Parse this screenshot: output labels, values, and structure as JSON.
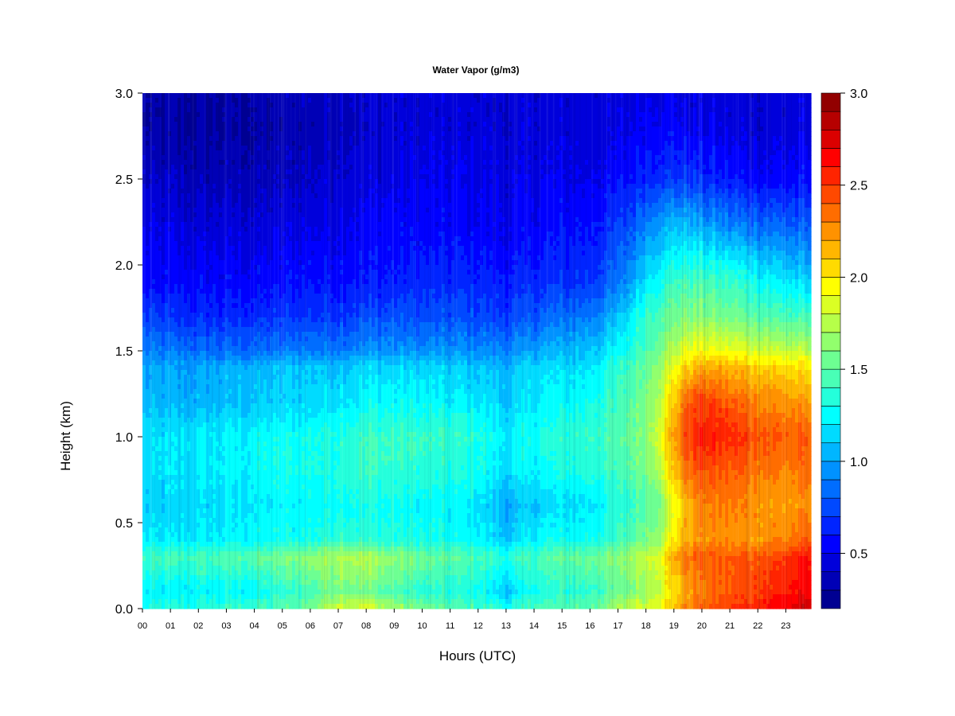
{
  "chart_data": {
    "type": "heatmap",
    "title": "Water Vapor (g/m3)",
    "xlabel": "Hours (UTC)",
    "ylabel": "Height (km)",
    "x_ticks": [
      "00",
      "01",
      "02",
      "03",
      "04",
      "05",
      "06",
      "07",
      "08",
      "09",
      "10",
      "11",
      "12",
      "13",
      "14",
      "15",
      "16",
      "17",
      "18",
      "19",
      "20",
      "21",
      "22",
      "23"
    ],
    "xlim": [
      0,
      23.9
    ],
    "y_ticks": [
      "0.0",
      "0.5",
      "1.0",
      "1.5",
      "2.0",
      "2.5",
      "3.0"
    ],
    "y_tick_values": [
      0,
      0.5,
      1.0,
      1.5,
      2.0,
      2.5,
      3.0
    ],
    "ylim": [
      0,
      3.0
    ],
    "colorbar": {
      "range": [
        0.2,
        3.0
      ],
      "step": 0.1,
      "ticks": [
        "0.5",
        "1.0",
        "1.5",
        "2.0",
        "2.5",
        "3.0"
      ],
      "tick_values": [
        0.5,
        1.0,
        1.5,
        2.0,
        2.5,
        3.0
      ],
      "colormap": "jet",
      "colors": [
        "#000080",
        "#0000ff",
        "#00ffff",
        "#ffff00",
        "#ff0000",
        "#800000"
      ]
    },
    "x": [
      0,
      2,
      4,
      6,
      7,
      8,
      10,
      12,
      13,
      14,
      16,
      17,
      17.5,
      18,
      18.5,
      19,
      19.5,
      20,
      21,
      22,
      23,
      23.9
    ],
    "y": [
      0,
      0.1,
      0.3,
      0.4,
      0.6,
      0.8,
      1.0,
      1.2,
      1.4,
      1.5,
      1.7,
      1.9,
      2.2,
      2.5,
      2.8,
      3.0
    ],
    "z": [
      [
        1.3,
        1.35,
        1.4,
        1.55,
        1.85,
        1.85,
        1.55,
        1.45,
        1.3,
        1.45,
        1.5,
        1.7,
        1.8,
        1.85,
        1.95,
        2.1,
        2.3,
        2.4,
        2.5,
        2.6,
        2.7,
        2.8
      ],
      [
        1.2,
        1.22,
        1.25,
        1.45,
        1.6,
        1.55,
        1.35,
        1.3,
        1.1,
        1.3,
        1.4,
        1.5,
        1.6,
        1.7,
        1.85,
        2.0,
        2.2,
        2.3,
        2.4,
        2.5,
        2.6,
        2.65
      ],
      [
        1.4,
        1.45,
        1.5,
        1.65,
        1.75,
        1.75,
        1.55,
        1.45,
        1.35,
        1.45,
        1.55,
        1.6,
        1.7,
        1.8,
        1.9,
        2.2,
        2.35,
        2.4,
        2.4,
        2.45,
        2.5,
        2.6
      ],
      [
        1.2,
        1.2,
        1.25,
        1.3,
        1.4,
        1.35,
        1.3,
        1.25,
        1.1,
        1.25,
        1.3,
        1.4,
        1.5,
        1.6,
        1.7,
        2.0,
        2.2,
        2.25,
        2.25,
        2.25,
        2.3,
        2.4
      ],
      [
        1.1,
        1.15,
        1.2,
        1.25,
        1.3,
        1.3,
        1.25,
        1.2,
        1.0,
        1.1,
        1.2,
        1.3,
        1.4,
        1.5,
        1.6,
        1.9,
        2.15,
        2.3,
        2.3,
        2.25,
        2.2,
        2.25
      ],
      [
        1.15,
        1.2,
        1.25,
        1.3,
        1.35,
        1.4,
        1.35,
        1.3,
        1.15,
        1.25,
        1.35,
        1.4,
        1.5,
        1.6,
        1.8,
        2.1,
        2.35,
        2.45,
        2.4,
        2.35,
        2.3,
        2.35
      ],
      [
        1.15,
        1.2,
        1.25,
        1.3,
        1.35,
        1.4,
        1.4,
        1.35,
        1.2,
        1.3,
        1.4,
        1.45,
        1.55,
        1.65,
        1.9,
        2.2,
        2.5,
        2.6,
        2.55,
        2.45,
        2.4,
        2.4
      ],
      [
        1.05,
        1.05,
        1.1,
        1.15,
        1.2,
        1.25,
        1.25,
        1.2,
        1.1,
        1.2,
        1.3,
        1.4,
        1.5,
        1.6,
        1.8,
        2.1,
        2.4,
        2.5,
        2.4,
        2.3,
        2.25,
        2.2
      ],
      [
        1.0,
        1.0,
        1.05,
        1.1,
        1.1,
        1.15,
        1.15,
        1.1,
        1.05,
        1.15,
        1.2,
        1.35,
        1.45,
        1.55,
        1.7,
        1.9,
        2.1,
        2.2,
        2.15,
        2.1,
        2.05,
        2.0
      ],
      [
        0.9,
        0.85,
        0.85,
        0.9,
        0.9,
        0.95,
        0.95,
        0.95,
        0.9,
        1.0,
        1.1,
        1.25,
        1.35,
        1.45,
        1.6,
        1.75,
        1.9,
        1.95,
        1.9,
        1.85,
        1.8,
        1.75
      ],
      [
        0.7,
        0.65,
        0.65,
        0.7,
        0.7,
        0.75,
        0.75,
        0.75,
        0.7,
        0.8,
        0.9,
        1.05,
        1.25,
        1.4,
        1.5,
        1.55,
        1.6,
        1.6,
        1.55,
        1.5,
        1.45,
        1.4
      ],
      [
        0.55,
        0.55,
        0.55,
        0.6,
        0.6,
        0.6,
        0.65,
        0.65,
        0.6,
        0.65,
        0.7,
        0.85,
        1.0,
        1.2,
        1.3,
        1.4,
        1.45,
        1.45,
        1.4,
        1.3,
        1.2,
        1.1
      ],
      [
        0.5,
        0.45,
        0.45,
        0.5,
        0.5,
        0.55,
        0.55,
        0.55,
        0.5,
        0.55,
        0.6,
        0.7,
        0.8,
        0.95,
        1.05,
        1.1,
        1.1,
        1.05,
        0.95,
        0.9,
        0.85,
        0.8
      ],
      [
        0.4,
        0.35,
        0.35,
        0.4,
        0.45,
        0.45,
        0.5,
        0.5,
        0.45,
        0.5,
        0.5,
        0.55,
        0.6,
        0.65,
        0.7,
        0.7,
        0.7,
        0.65,
        0.6,
        0.55,
        0.55,
        0.55
      ],
      [
        0.3,
        0.28,
        0.3,
        0.35,
        0.38,
        0.4,
        0.45,
        0.45,
        0.42,
        0.45,
        0.45,
        0.45,
        0.5,
        0.55,
        0.55,
        0.55,
        0.5,
        0.5,
        0.45,
        0.45,
        0.45,
        0.45
      ],
      [
        0.3,
        0.3,
        0.32,
        0.38,
        0.4,
        0.42,
        0.45,
        0.45,
        0.42,
        0.45,
        0.45,
        0.45,
        0.5,
        0.5,
        0.5,
        0.5,
        0.45,
        0.45,
        0.45,
        0.45,
        0.42,
        0.45
      ]
    ]
  }
}
